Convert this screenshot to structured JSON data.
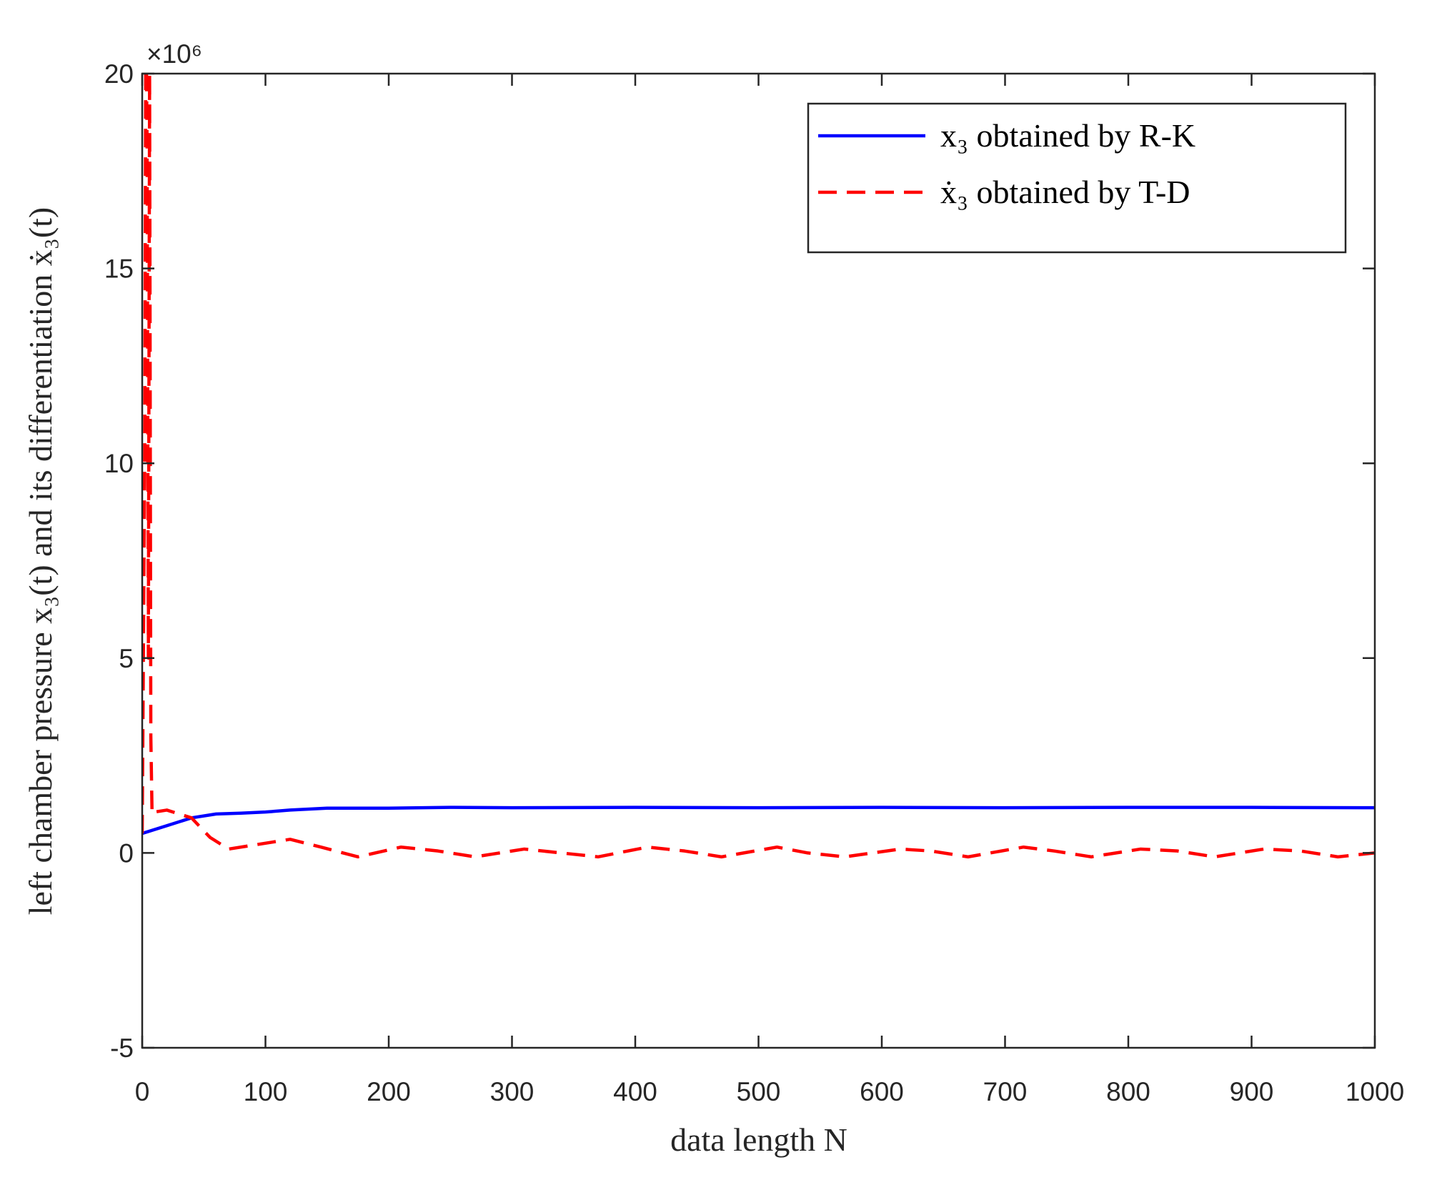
{
  "chart_data": {
    "type": "line",
    "x_label": "data length N",
    "y_label": "left chamber pressure x₃(t) and its differentiation ẋ₃(t)",
    "y_multiplier": "×10⁶",
    "xlim": [
      0,
      1000
    ],
    "ylim": [
      -5,
      20
    ],
    "xticks": [
      0,
      100,
      200,
      300,
      400,
      500,
      600,
      700,
      800,
      900,
      1000
    ],
    "yticks": [
      -5,
      0,
      5,
      10,
      15,
      20
    ],
    "grid": false,
    "legend": "upper right",
    "series": [
      {
        "name": "x₃ obtained by R-K",
        "color": "#0000ff",
        "dash": "solid",
        "x": [
          0,
          20,
          40,
          60,
          80,
          100,
          120,
          150,
          200,
          250,
          300,
          400,
          500,
          600,
          700,
          800,
          900,
          1000
        ],
        "values": [
          0.5,
          0.7,
          0.9,
          1.0,
          1.02,
          1.05,
          1.1,
          1.15,
          1.15,
          1.17,
          1.16,
          1.17,
          1.16,
          1.17,
          1.16,
          1.17,
          1.17,
          1.16
        ]
      },
      {
        "name": "ẋ₃ obtained by T-D",
        "color": "#ff0000",
        "dash": "dashed",
        "x": [
          0,
          2,
          3,
          4,
          5,
          6,
          7,
          8,
          10,
          20,
          30,
          40,
          55,
          70,
          90,
          120,
          145,
          175,
          210,
          240,
          270,
          310,
          340,
          370,
          410,
          440,
          470,
          515,
          540,
          570,
          615,
          640,
          670,
          715,
          740,
          770,
          810,
          840,
          870,
          910,
          940,
          970,
          1000
        ],
        "values": [
          0.5,
          10,
          22,
          18,
          5,
          20,
          3,
          1.0,
          1.05,
          1.1,
          1.0,
          0.9,
          0.4,
          0.1,
          0.2,
          0.35,
          0.15,
          -0.1,
          0.15,
          0.05,
          -0.1,
          0.1,
          0.0,
          -0.1,
          0.15,
          0.05,
          -0.1,
          0.15,
          0.0,
          -0.1,
          0.1,
          0.05,
          -0.1,
          0.15,
          0.05,
          -0.1,
          0.1,
          0.05,
          -0.1,
          0.1,
          0.05,
          -0.1,
          0.0
        ]
      }
    ]
  }
}
